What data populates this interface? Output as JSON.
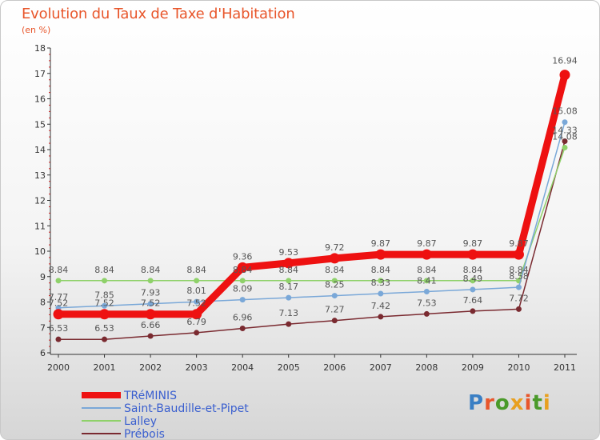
{
  "title": "Evolution du Taux de Taxe d'Habitation",
  "subtitle": "(en %)",
  "logo": {
    "text": "Proxiti",
    "colors": [
      "#3a7fc4",
      "#e8562b",
      "#4a9a2a",
      "#e8a020",
      "#e8562b",
      "#4a9a2a",
      "#e8a020"
    ]
  },
  "chart_data": {
    "type": "line",
    "title": "Evolution du Taux de Taxe d'Habitation",
    "ylabel": "(en %)",
    "xlabel": "",
    "ylim": [
      6,
      18
    ],
    "yticks": [
      "6",
      "7",
      "8",
      "9",
      "10",
      "11",
      "12",
      "13",
      "14",
      "15",
      "16",
      "17",
      "18"
    ],
    "categories": [
      "2000",
      "2001",
      "2002",
      "2003",
      "2004",
      "2005",
      "2006",
      "2007",
      "2008",
      "2009",
      "2010",
      "2011"
    ],
    "series": [
      {
        "name": "Prébois",
        "color": "#7a2a30",
        "values": [
          6.53,
          6.53,
          6.66,
          6.79,
          6.96,
          7.13,
          7.27,
          7.42,
          7.53,
          7.64,
          7.72,
          14.33
        ],
        "labels": [
          "6.53",
          "6.53",
          "6.66",
          "6.79",
          "6.96",
          "7.13",
          "7.27",
          "7.42",
          "7.53",
          "7.64",
          "7.72",
          "14.33"
        ]
      },
      {
        "name": "Lalley",
        "color": "#8fd16a",
        "values": [
          8.84,
          8.84,
          8.84,
          8.84,
          8.84,
          8.84,
          8.84,
          8.84,
          8.84,
          8.84,
          8.84,
          14.08
        ],
        "labels": [
          "8.84",
          "8.84",
          "8.84",
          "8.84",
          "8.84",
          "8.84",
          "8.84",
          "8.84",
          "8.84",
          "8.84",
          "8.84",
          "14.08"
        ]
      },
      {
        "name": "Saint-Baudille-et-Pipet",
        "color": "#7aa8d8",
        "values": [
          7.77,
          7.85,
          7.93,
          8.01,
          8.09,
          8.17,
          8.25,
          8.33,
          8.41,
          8.49,
          8.58,
          15.08
        ],
        "labels": [
          "7.77",
          "7.85",
          "7.93",
          "8.01",
          "8.09",
          "8.17",
          "8.25",
          "8.33",
          "8.41",
          "8.49",
          "8.58",
          "15.08"
        ]
      },
      {
        "name": "TRéMINIS",
        "color": "#ee1111",
        "values": [
          7.52,
          7.52,
          7.52,
          7.52,
          9.36,
          9.53,
          9.72,
          9.87,
          9.87,
          9.87,
          9.87,
          16.94
        ],
        "labels": [
          "7.52",
          "7.52",
          "7.52",
          "7.52",
          "9.36",
          "9.53",
          "9.72",
          "9.87",
          "9.87",
          "9.87",
          "9.87",
          "16.94"
        ]
      }
    ],
    "legend": [
      "TRéMINIS",
      "Saint-Baudille-et-Pipet",
      "Lalley",
      "Prébois"
    ],
    "legend_position": "bottom-left",
    "grid": false
  }
}
